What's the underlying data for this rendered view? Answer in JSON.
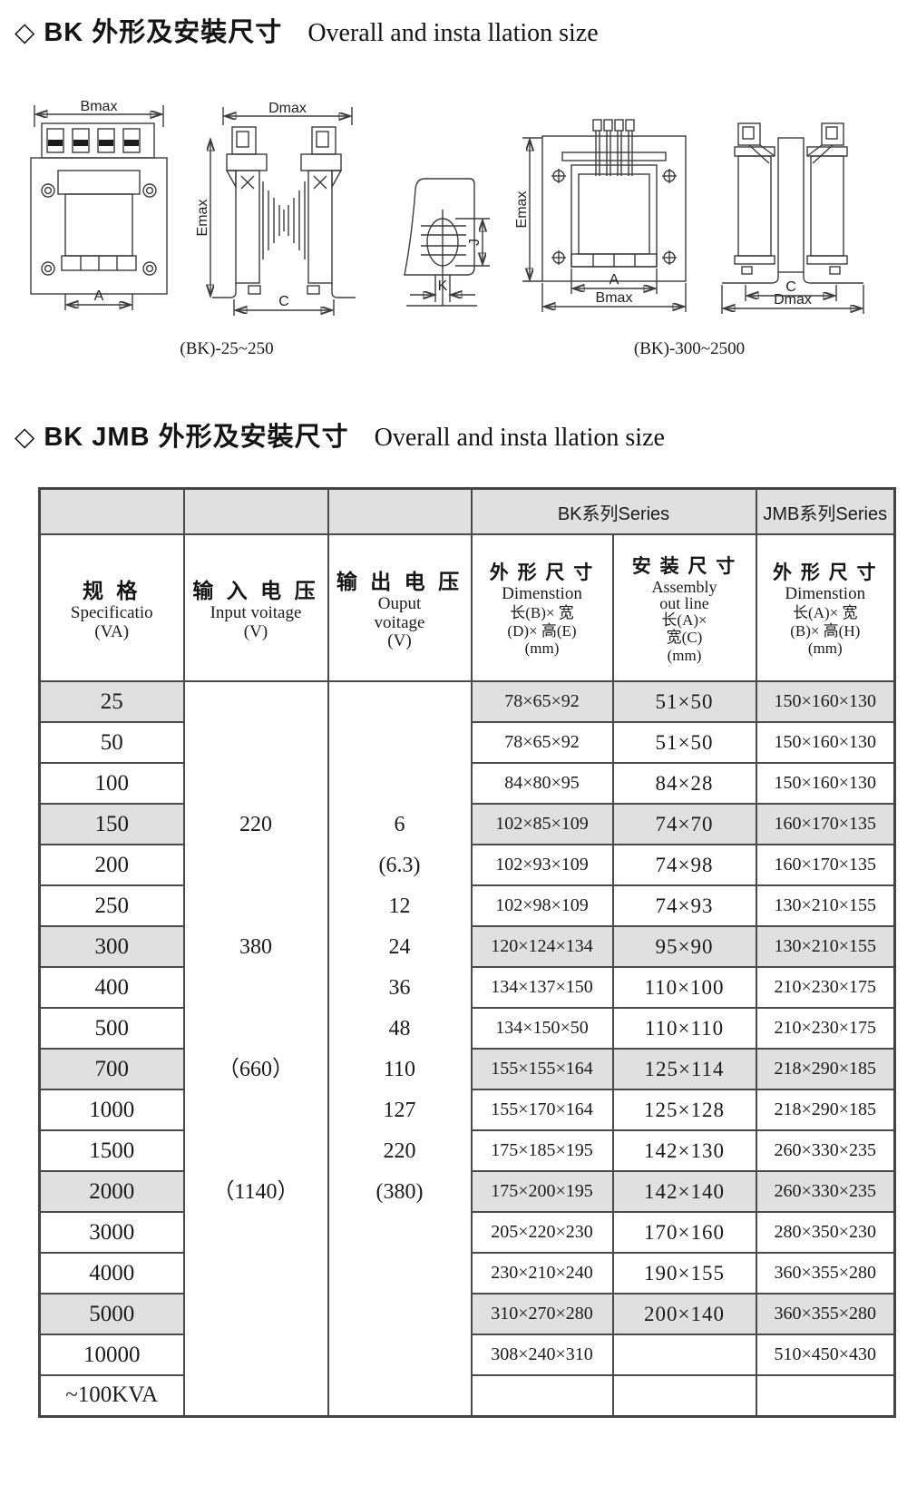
{
  "titles": {
    "t1_zh": "◇ BK 外形及安裝尺寸",
    "t1_en": "Overall and  insta llation size",
    "t2_zh": "◇ BK  JMB 外形及安裝尺寸",
    "t2_en": "Overall and  insta llation size"
  },
  "figures": {
    "caption_small": "(BK)-25~250",
    "caption_large": "(BK)-300~2500",
    "fig1": {
      "dim_top": "Bmax",
      "dim_bottom": "A"
    },
    "fig2": {
      "dim_top": "Dmax",
      "dim_left": "Emax",
      "dim_bottom": "C"
    },
    "fig3": {
      "dim_right": "J",
      "dim_bottom": "K"
    },
    "fig4": {
      "dim_left": "Emax",
      "dim_a": "A",
      "dim_b": "Bmax"
    },
    "fig5": {
      "dim_c": "C",
      "dim_d": "Dmax"
    }
  },
  "chart_data": {
    "type": "table",
    "header": {
      "bk_group": "BK系列Series",
      "jmb_group": "JMB系列Series",
      "spec": {
        "zh": "规 格",
        "en": "Specificatio",
        "unit": "(VA)"
      },
      "input": {
        "zh": "输 入 电 压",
        "en": "Input voitage",
        "unit": "(V)"
      },
      "output": {
        "zh": "输 出 电 压",
        "en1": "Ouput",
        "en2": "voitage",
        "unit": "(V)"
      },
      "bk_dim": {
        "zh": "外 形 尺 寸",
        "en": "Dimenstion",
        "l1": "长(B)× 宽",
        "l2": "(D)× 高(E)",
        "l3": "(mm)"
      },
      "bk_asm": {
        "zh": "安 装 尺 寸",
        "en1": "Assembly",
        "en2": "out line",
        "l1": "长(A)×",
        "l2": "宽(C)",
        "l3": "(mm)"
      },
      "jmb_dim": {
        "zh": "外 形 尺 寸",
        "en": "Dimenstion",
        "l1": "长(A)× 宽",
        "l2": "(B)× 高(H)",
        "l3": "(mm)"
      }
    },
    "input_voltage": [
      {
        "row": 3,
        "text": "220"
      },
      {
        "row": 6,
        "text": "380"
      },
      {
        "row": 9,
        "text": "（660）"
      },
      {
        "row": 12,
        "text": "（1140）"
      }
    ],
    "output_voltage": [
      {
        "row": 3,
        "text": "6"
      },
      {
        "row": 4,
        "text": "(6.3)"
      },
      {
        "row": 5,
        "text": "12"
      },
      {
        "row": 6,
        "text": "24"
      },
      {
        "row": 7,
        "text": "36"
      },
      {
        "row": 8,
        "text": "48"
      },
      {
        "row": 9,
        "text": "110"
      },
      {
        "row": 10,
        "text": "127"
      },
      {
        "row": 11,
        "text": "220"
      },
      {
        "row": 12,
        "text": "(380)"
      }
    ],
    "rows": [
      {
        "spec": "25",
        "bk_dim": "78×65×92",
        "bk_asm": "51×50",
        "jmb_dim": "150×160×130",
        "shaded": true
      },
      {
        "spec": "50",
        "bk_dim": "78×65×92",
        "bk_asm": "51×50",
        "jmb_dim": "150×160×130",
        "shaded": false
      },
      {
        "spec": "100",
        "bk_dim": "84×80×95",
        "bk_asm": "84×28",
        "jmb_dim": "150×160×130",
        "shaded": false
      },
      {
        "spec": "150",
        "bk_dim": "102×85×109",
        "bk_asm": "74×70",
        "jmb_dim": "160×170×135",
        "shaded": true
      },
      {
        "spec": "200",
        "bk_dim": "102×93×109",
        "bk_asm": "74×98",
        "jmb_dim": "160×170×135",
        "shaded": false
      },
      {
        "spec": "250",
        "bk_dim": "102×98×109",
        "bk_asm": "74×93",
        "jmb_dim": "130×210×155",
        "shaded": false
      },
      {
        "spec": "300",
        "bk_dim": "120×124×134",
        "bk_asm": "95×90",
        "jmb_dim": "130×210×155",
        "shaded": true
      },
      {
        "spec": "400",
        "bk_dim": "134×137×150",
        "bk_asm": "110×100",
        "jmb_dim": "210×230×175",
        "shaded": false
      },
      {
        "spec": "500",
        "bk_dim": "134×150×50",
        "bk_asm": "110×110",
        "jmb_dim": "210×230×175",
        "shaded": false
      },
      {
        "spec": "700",
        "bk_dim": "155×155×164",
        "bk_asm": "125×114",
        "jmb_dim": "218×290×185",
        "shaded": true
      },
      {
        "spec": "1000",
        "bk_dim": "155×170×164",
        "bk_asm": "125×128",
        "jmb_dim": "218×290×185",
        "shaded": false
      },
      {
        "spec": "1500",
        "bk_dim": "175×185×195",
        "bk_asm": "142×130",
        "jmb_dim": "260×330×235",
        "shaded": false
      },
      {
        "spec": "2000",
        "bk_dim": "175×200×195",
        "bk_asm": "142×140",
        "jmb_dim": "260×330×235",
        "shaded": true
      },
      {
        "spec": "3000",
        "bk_dim": "205×220×230",
        "bk_asm": "170×160",
        "jmb_dim": "280×350×230",
        "shaded": false
      },
      {
        "spec": "4000",
        "bk_dim": "230×210×240",
        "bk_asm": "190×155",
        "jmb_dim": "360×355×280",
        "shaded": false
      },
      {
        "spec": "5000",
        "bk_dim": "310×270×280",
        "bk_asm": "200×140",
        "jmb_dim": "360×355×280",
        "shaded": true
      },
      {
        "spec": "10000",
        "bk_dim": "308×240×310",
        "bk_asm": "",
        "jmb_dim": "510×450×430",
        "shaded": false
      },
      {
        "spec": "~100KVA",
        "bk_dim": "",
        "bk_asm": "",
        "jmb_dim": "",
        "shaded": false
      }
    ],
    "colors": {
      "row_shade": "#e0e0e0",
      "border": "#4a4a4a"
    }
  }
}
